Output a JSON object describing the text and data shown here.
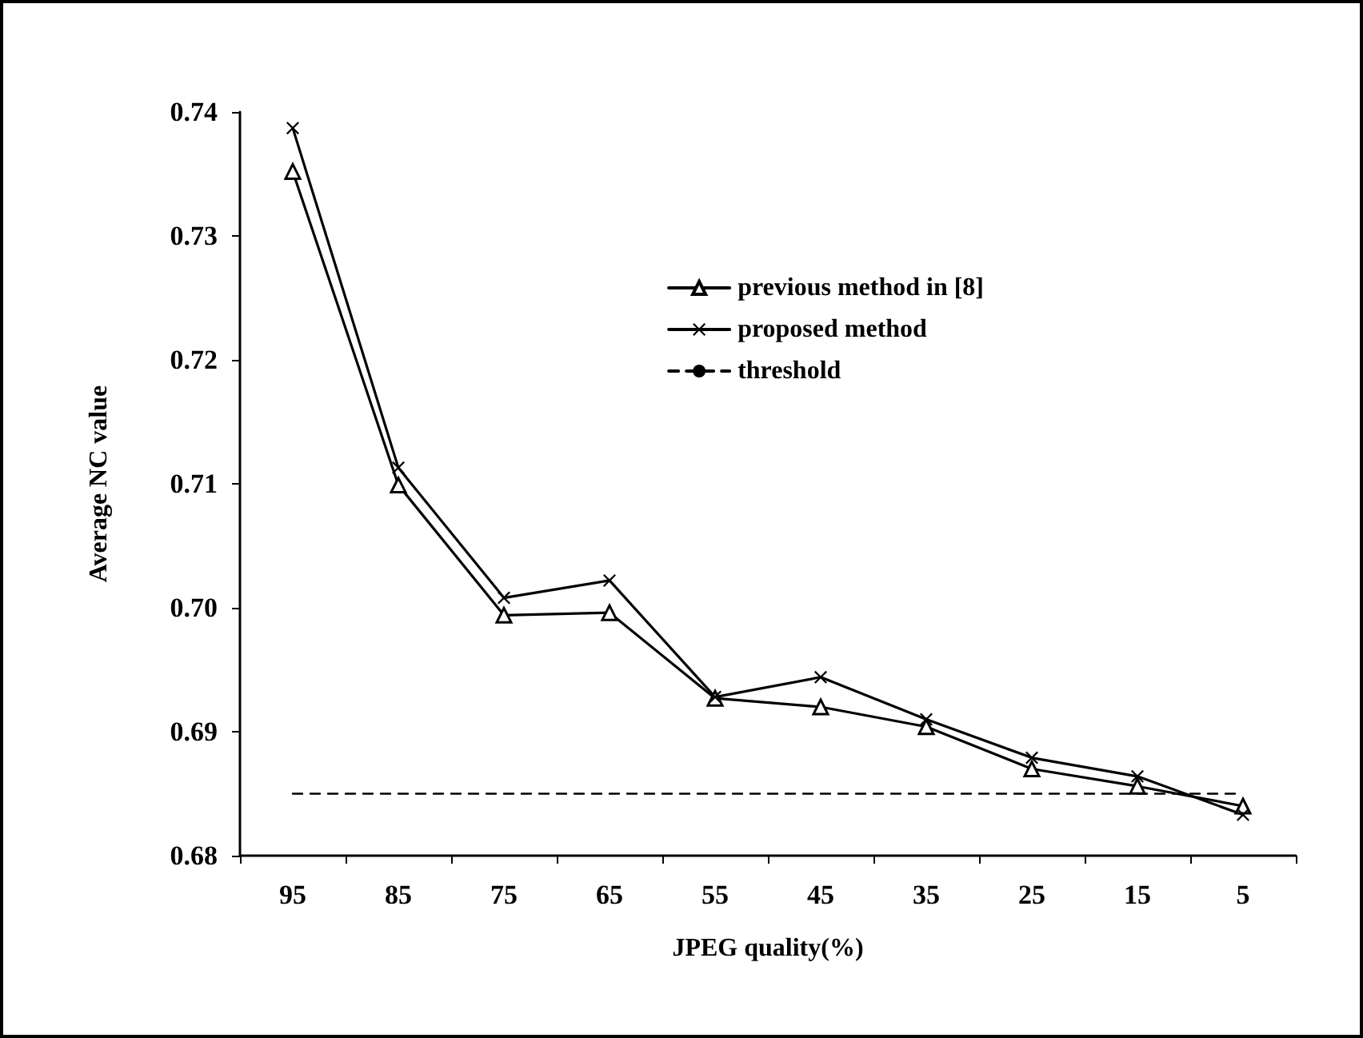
{
  "chart_data": {
    "type": "line",
    "xlabel": "JPEG quality(%)",
    "ylabel": "Average NC value",
    "categories": [
      "95",
      "85",
      "75",
      "65",
      "55",
      "45",
      "35",
      "25",
      "15",
      "5"
    ],
    "ylim": [
      0.68,
      0.74
    ],
    "yticks": [
      {
        "value": 0.68,
        "label": "0.68"
      },
      {
        "value": 0.69,
        "label": "0.69"
      },
      {
        "value": 0.7,
        "label": "0.70"
      },
      {
        "value": 0.71,
        "label": "0.71"
      },
      {
        "value": 0.72,
        "label": "0.72"
      },
      {
        "value": 0.73,
        "label": "0.73"
      },
      {
        "value": 0.74,
        "label": "0.74"
      }
    ],
    "grid": false,
    "legend": "top right",
    "series": [
      {
        "name": "previous method in [8]",
        "color": "#000000",
        "marker": "triangle",
        "line_style": "solid",
        "values": [
          0.7352,
          0.7099,
          0.6994,
          0.6996,
          0.6927,
          0.692,
          0.6904,
          0.687,
          0.6856,
          0.684
        ]
      },
      {
        "name": "proposed method",
        "color": "#000000",
        "marker": "cross",
        "line_style": "solid",
        "values": [
          0.7387,
          0.7113,
          0.7008,
          0.7022,
          0.6928,
          0.6944,
          0.691,
          0.6879,
          0.6864,
          0.6833
        ]
      },
      {
        "name": "threshold",
        "color": "#000000",
        "marker": "none",
        "line_style": "dashed",
        "values": [
          0.685,
          0.685,
          0.685,
          0.685,
          0.685,
          0.685,
          0.685,
          0.685,
          0.685,
          0.685
        ]
      }
    ]
  }
}
